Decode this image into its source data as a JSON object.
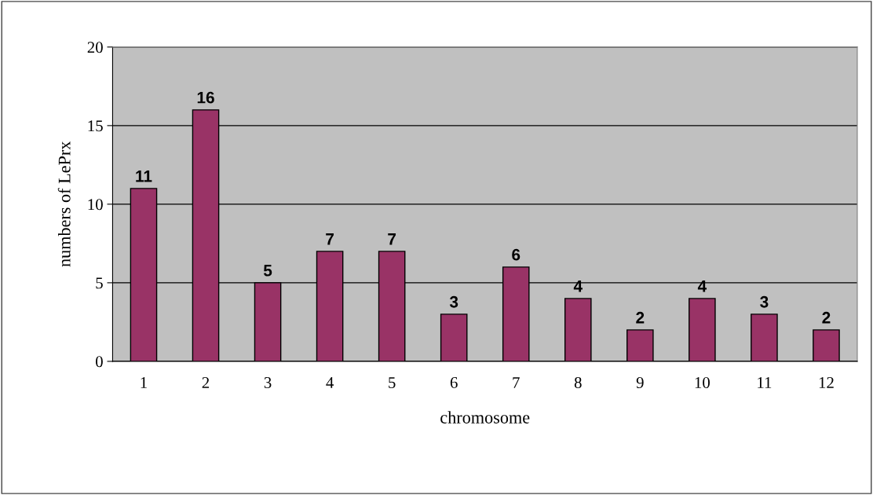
{
  "chart_data": {
    "type": "bar",
    "categories": [
      "1",
      "2",
      "3",
      "4",
      "5",
      "6",
      "7",
      "8",
      "9",
      "10",
      "11",
      "12"
    ],
    "values": [
      11,
      16,
      5,
      7,
      7,
      3,
      6,
      4,
      2,
      4,
      3,
      2
    ],
    "color": "#993366",
    "xlabel": "chromosome",
    "ylabel": "numbers of LePrx",
    "ylim": [
      0,
      20
    ],
    "yticks": [
      0,
      5,
      10,
      15,
      20
    ],
    "grid": "y",
    "data_labels": true
  }
}
